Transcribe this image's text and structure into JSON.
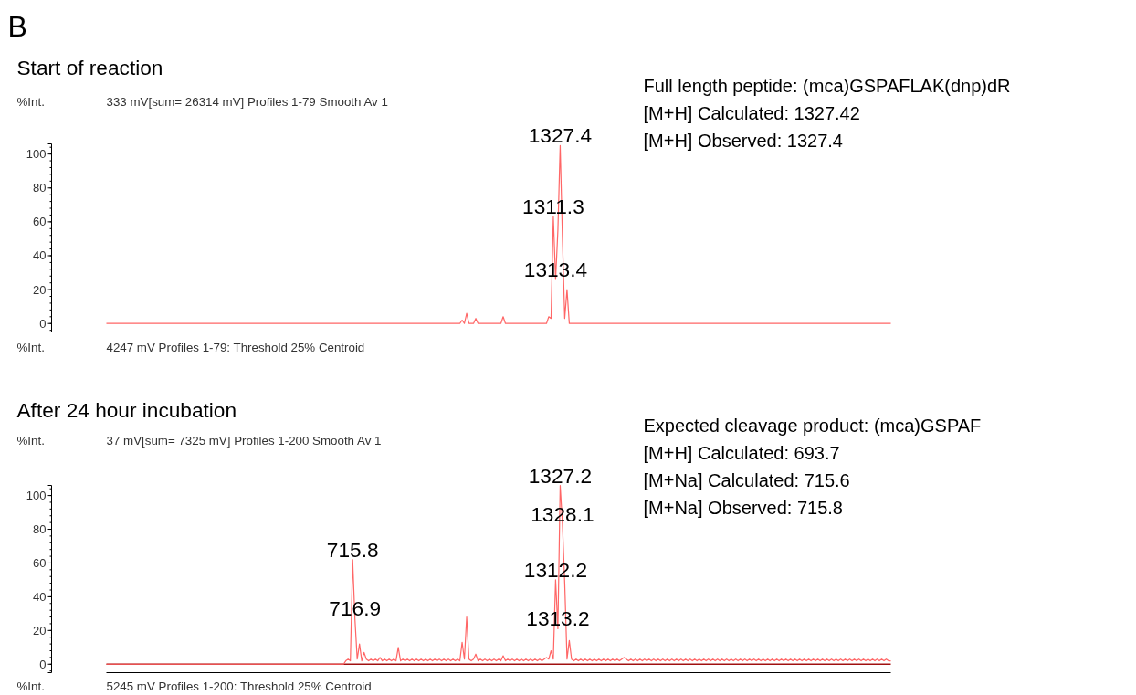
{
  "chart_data": [
    {
      "type": "line",
      "title": "Start of reaction",
      "subtitle": "333 mV[sum= 26314 mV]  Profiles 1-79 Smooth Av 1",
      "xlabel": "4247 mV  Profiles 1-79: Threshold 25% Centroid",
      "ylabel": "%Int.",
      "annotations": [
        "B",
        "Full length peptide: (mca)GSPAFLAK(dnp)dR",
        "[M+H] Calculated: 1327.42",
        "[M+H] Observed: 1327.4",
        {
          "text": "1327.4",
          "y": 105
        },
        {
          "text": "1311.3",
          "y": 63
        },
        {
          "text": "1313.4",
          "y": 26
        }
      ],
      "categories": [
        null,
        null,
        null,
        null,
        null,
        null,
        null,
        null,
        null,
        null,
        null,
        null,
        null,
        null,
        null,
        null,
        null,
        null,
        null,
        null,
        null,
        null,
        null,
        null,
        null,
        null,
        null,
        null,
        null,
        null,
        null,
        null,
        null,
        null,
        null,
        null,
        null,
        null,
        null,
        null,
        null,
        null,
        null,
        null,
        null,
        null,
        null,
        null,
        null,
        null,
        null,
        null,
        null,
        null,
        null,
        null,
        null,
        null,
        null,
        null,
        null,
        null,
        null,
        null,
        null,
        null,
        null,
        null,
        null,
        null,
        null,
        null,
        null,
        null,
        null,
        null,
        null,
        null,
        null,
        null,
        null,
        null,
        null,
        null,
        null,
        null,
        null,
        null,
        null,
        null,
        null,
        null,
        null,
        null,
        null,
        null,
        null,
        null,
        null,
        null,
        null,
        null,
        null,
        null,
        null,
        null,
        null,
        null,
        null,
        null,
        null,
        null,
        null,
        null,
        null,
        null,
        null,
        null,
        null,
        null,
        null,
        null,
        null,
        null,
        null,
        null,
        null,
        null,
        null,
        null,
        null,
        null,
        null,
        null,
        null,
        null,
        null,
        null,
        null,
        null,
        null,
        null,
        null,
        null,
        null,
        null,
        null,
        null,
        null,
        null,
        null,
        null,
        null,
        null,
        null,
        null,
        null,
        null,
        null,
        null,
        null,
        null,
        null,
        null,
        null,
        null,
        null,
        null,
        null,
        null,
        null,
        null,
        null,
        null,
        null,
        null,
        null,
        null,
        null,
        null,
        null,
        null,
        null,
        null,
        null,
        null,
        null,
        null,
        null,
        null,
        null,
        null,
        null,
        null,
        null,
        null,
        null,
        null,
        null,
        null,
        null,
        null,
        null,
        null,
        null,
        null,
        null,
        null,
        null,
        null,
        null,
        null,
        null,
        null,
        null,
        null,
        null,
        null,
        null,
        null,
        null,
        null,
        null,
        null,
        null,
        null,
        null,
        null,
        null,
        null,
        null,
        null,
        null,
        null,
        null,
        null,
        null,
        null,
        null,
        null,
        null,
        null,
        null,
        null,
        null,
        null,
        null,
        null,
        null,
        null,
        null,
        null,
        null,
        null,
        null,
        null,
        null,
        null,
        null,
        null,
        null,
        null,
        null,
        null,
        null,
        null,
        null,
        null,
        null,
        null,
        null,
        null,
        null,
        null,
        null,
        null,
        null,
        null,
        null,
        null,
        null,
        null,
        null,
        null,
        null,
        null,
        null,
        null,
        null,
        null,
        null,
        null,
        null,
        null,
        null,
        null,
        null,
        null,
        null,
        null,
        null,
        null,
        null,
        null,
        null,
        null,
        null,
        null,
        null,
        null,
        null,
        null,
        null,
        null,
        null,
        null,
        null,
        null,
        null,
        null,
        null,
        null,
        null,
        null,
        null,
        null,
        null,
        null,
        null,
        null,
        null,
        null,
        null,
        null,
        null,
        null,
        null,
        null,
        null,
        null,
        null,
        null,
        null,
        null,
        null
      ],
      "series": [
        {
          "color": "#ff6666",
          "values": [
            0,
            0,
            0,
            0,
            0,
            0,
            0,
            0,
            0,
            0,
            0,
            0,
            0,
            0,
            0,
            0,
            0,
            0,
            0,
            0,
            0,
            0,
            0,
            0,
            0,
            0,
            0,
            0,
            0,
            0,
            0,
            0,
            0,
            0,
            0,
            0,
            0,
            0,
            0,
            0,
            0,
            0,
            0,
            0,
            0,
            0,
            0,
            0,
            0,
            0,
            0,
            0,
            0,
            0,
            0,
            0,
            0,
            0,
            0,
            0,
            0,
            0,
            0,
            0,
            0,
            0,
            0,
            0,
            0,
            0,
            0,
            0,
            0,
            0,
            0,
            0,
            0,
            0,
            0,
            0,
            0,
            0,
            0,
            0,
            0,
            0,
            0,
            0,
            0,
            0,
            0,
            0,
            0,
            0,
            0,
            0,
            0,
            0,
            0,
            0,
            0,
            0,
            0,
            0,
            0,
            0,
            0,
            0,
            0,
            0,
            0,
            0,
            0,
            0,
            0,
            0,
            0,
            0,
            0,
            0,
            0,
            0,
            0,
            0,
            0,
            0,
            0,
            0,
            0,
            0,
            0,
            0,
            0,
            0,
            0,
            0,
            0,
            0,
            0,
            0,
            0,
            0,
            0,
            0,
            0,
            0,
            0,
            0,
            0,
            0,
            0,
            0,
            0,
            0,
            0,
            0,
            2,
            0,
            6,
            0,
            0,
            0,
            3,
            0,
            0,
            0,
            0,
            0,
            0,
            0,
            0,
            0,
            0,
            0,
            4,
            0,
            0,
            0,
            0,
            0,
            0,
            0,
            0,
            0,
            0,
            0,
            0,
            0,
            0,
            0,
            0,
            0,
            0,
            0,
            4,
            3,
            63,
            26,
            55,
            105,
            50,
            3,
            20,
            0,
            0,
            0,
            0,
            0,
            0,
            0,
            0,
            0,
            0,
            0,
            0,
            0,
            0,
            0,
            0,
            0,
            0,
            0,
            0,
            0,
            0,
            0,
            0,
            0,
            0,
            0,
            0,
            0,
            0,
            0,
            0,
            0,
            0,
            0,
            0,
            0,
            0,
            0,
            0,
            0,
            0,
            0,
            0,
            0,
            0,
            0,
            0,
            0,
            0,
            0,
            0,
            0,
            0,
            0,
            0,
            0,
            0,
            0,
            0,
            0,
            0,
            0,
            0,
            0,
            0,
            0,
            0,
            0,
            0,
            0,
            0,
            0,
            0,
            0,
            0,
            0,
            0,
            0,
            0,
            0,
            0,
            0,
            0,
            0,
            0,
            0,
            0,
            0,
            0,
            0,
            0,
            0,
            0,
            0,
            0,
            0,
            0,
            0,
            0,
            0,
            0,
            0,
            0,
            0,
            0,
            0,
            0,
            0,
            0,
            0,
            0,
            0,
            0,
            0,
            0,
            0,
            0,
            0,
            0,
            0,
            0,
            0,
            0,
            0,
            0,
            0,
            0,
            0,
            0,
            0,
            0,
            0,
            0,
            0,
            0,
            0,
            0,
            0,
            0,
            0,
            0
          ]
        }
      ],
      "ylim": [
        -5,
        106
      ],
      "yticks": [
        0,
        20,
        40,
        60,
        80,
        100
      ],
      "tick_labels": "y"
    },
    {
      "type": "line",
      "title": "After 24 hour incubation",
      "subtitle": "37 mV[sum= 7325 mV]  Profiles 1-200 Smooth Av 1",
      "xlabel": "5245 mV  Profiles 1-200: Threshold 25% Centroid",
      "ylabel": "%Int.",
      "annotations": [
        "Expected cleavage product: (mca)GSPAF",
        "[M+H] Calculated: 693.7",
        "[M+Na] Calculated: 715.6",
        "[M+Na] Observed: 715.8",
        {
          "text": "715.8",
          "y": 62
        },
        {
          "text": "716.9",
          "y": 27
        },
        {
          "text": "1327.2",
          "y": 106
        },
        {
          "text": "1328.1",
          "y": 83
        },
        {
          "text": "1312.2",
          "y": 50
        },
        {
          "text": "1313.2",
          "y": 21
        }
      ],
      "categories": [
        null,
        null,
        null,
        null,
        null,
        null,
        null,
        null,
        null,
        null,
        null,
        null,
        null,
        null,
        null,
        null,
        null,
        null,
        null,
        null,
        null,
        null,
        null,
        null,
        null,
        null,
        null,
        null,
        null,
        null,
        null,
        null,
        null,
        null,
        null,
        null,
        null,
        null,
        null,
        null,
        null,
        null,
        null,
        null,
        null,
        null,
        null,
        null,
        null,
        null,
        null,
        null,
        null,
        null,
        null,
        null,
        null,
        null,
        null,
        null,
        null,
        null,
        null,
        null,
        null,
        null,
        null,
        null,
        null,
        null,
        null,
        null,
        null,
        null,
        null,
        null,
        null,
        null,
        null,
        null,
        null,
        null,
        null,
        null,
        null,
        null,
        null,
        null,
        null,
        null,
        null,
        null,
        null,
        null,
        null,
        null,
        null,
        null,
        null,
        null,
        null,
        null,
        null,
        null,
        null,
        null,
        null,
        null,
        null,
        null,
        null,
        null,
        null,
        null,
        null,
        null,
        null,
        null,
        null,
        null,
        null,
        null,
        null,
        null,
        null,
        null,
        null,
        null,
        null,
        null,
        null,
        null,
        null,
        null,
        null,
        null,
        null,
        null,
        null,
        null,
        null,
        null,
        null,
        null,
        null,
        null,
        null,
        null,
        null,
        null,
        null,
        null,
        null,
        null,
        null,
        null,
        null,
        null,
        null,
        null,
        null,
        null,
        null,
        null,
        null,
        null,
        null,
        null,
        null,
        null,
        null,
        null,
        null,
        null,
        null,
        null,
        null,
        null,
        null,
        null,
        null,
        null,
        null,
        null,
        null,
        null,
        null,
        null,
        null,
        null,
        null,
        null,
        null,
        null,
        null,
        null,
        null,
        null,
        null,
        null,
        null,
        null,
        null,
        null,
        null,
        null,
        null,
        null,
        null,
        null,
        null,
        null,
        null,
        null,
        null,
        null,
        null,
        null,
        null,
        null,
        null,
        null,
        null,
        null,
        null,
        null,
        null,
        null,
        null,
        null,
        null,
        null,
        null,
        null,
        null,
        null,
        null,
        null,
        null,
        null,
        null,
        null,
        null,
        null,
        null,
        null,
        null,
        null,
        null,
        null,
        null,
        null,
        null,
        null,
        null,
        null,
        null,
        null,
        null,
        null,
        null,
        null,
        null,
        null,
        null,
        null,
        null,
        null,
        null,
        null,
        null,
        null,
        null,
        null,
        null,
        null,
        null,
        null,
        null,
        null,
        null,
        null,
        null,
        null,
        null,
        null,
        null,
        null,
        null,
        null,
        null,
        null,
        null,
        null,
        null,
        null,
        null,
        null,
        null,
        null,
        null,
        null,
        null,
        null,
        null,
        null,
        null,
        null,
        null,
        null,
        null,
        null,
        null,
        null,
        null,
        null,
        null,
        null,
        null,
        null,
        null,
        null,
        null,
        null,
        null,
        null,
        null,
        null,
        null,
        null,
        null,
        null,
        null,
        null,
        null,
        null,
        null,
        null,
        null,
        null,
        null,
        null,
        null,
        null,
        null
      ],
      "series": [
        {
          "color": "#ff6666",
          "values": [
            0,
            0,
            0,
            0,
            0,
            0,
            0,
            0,
            0,
            0,
            0,
            0,
            0,
            0,
            0,
            0,
            0,
            0,
            0,
            0,
            0,
            0,
            0,
            0,
            0,
            0,
            0,
            0,
            0,
            0,
            0,
            0,
            0,
            0,
            0,
            0,
            0,
            0,
            0,
            0,
            0,
            0,
            0,
            0,
            0,
            0,
            0,
            0,
            0,
            0,
            0,
            0,
            0,
            0,
            0,
            0,
            0,
            0,
            0,
            0,
            0,
            0,
            0,
            0,
            0,
            0,
            0,
            0,
            0,
            0,
            0,
            0,
            0,
            0,
            0,
            0,
            0,
            0,
            0,
            0,
            0,
            0,
            0,
            0,
            0,
            0,
            0,
            0,
            0,
            0,
            0,
            0,
            0,
            0,
            0,
            0,
            0,
            0,
            0,
            0,
            0,
            0,
            0,
            0,
            0,
            2,
            3,
            2,
            62,
            27,
            3,
            12,
            2,
            7,
            3,
            2,
            3,
            2,
            3,
            2,
            4,
            2,
            3,
            2,
            3,
            2,
            3,
            2,
            10,
            2,
            3,
            2,
            3,
            2,
            3,
            2,
            3,
            2,
            3,
            2,
            3,
            2,
            3,
            2,
            3,
            2,
            3,
            2,
            3,
            2,
            3,
            2,
            3,
            2,
            3,
            2,
            13,
            3,
            28,
            3,
            2,
            3,
            6,
            2,
            3,
            2,
            3,
            2,
            3,
            2,
            3,
            2,
            3,
            2,
            5,
            2,
            3,
            2,
            3,
            2,
            3,
            2,
            3,
            2,
            3,
            2,
            3,
            2,
            3,
            2,
            3,
            2,
            3,
            4,
            3,
            8,
            3,
            50,
            21,
            106,
            83,
            48,
            3,
            14,
            3,
            2,
            3,
            2,
            3,
            2,
            3,
            2,
            3,
            2,
            3,
            2,
            3,
            2,
            3,
            2,
            3,
            2,
            3,
            2,
            3,
            2,
            3,
            4,
            3,
            2,
            3,
            2,
            3,
            2,
            3,
            2,
            3,
            2,
            3,
            2,
            3,
            2,
            3,
            2,
            3,
            2,
            3,
            2,
            3,
            2,
            3,
            2,
            3,
            2,
            3,
            2,
            3,
            2,
            3,
            2,
            3,
            2,
            3,
            2,
            3,
            2,
            3,
            2,
            3,
            2,
            3,
            2,
            3,
            2,
            3,
            2,
            3,
            2,
            3,
            2,
            3,
            2,
            3,
            2,
            3,
            2,
            3,
            2,
            3,
            2,
            3,
            2,
            3,
            2,
            3,
            2,
            3,
            2,
            3,
            2,
            3,
            2,
            3,
            2,
            3,
            2,
            3,
            2,
            3,
            2,
            3,
            2,
            3,
            2,
            3,
            2,
            3,
            2,
            3,
            2,
            3,
            2,
            3,
            2,
            3,
            2,
            3,
            2,
            3,
            2,
            3,
            2,
            3,
            2,
            3,
            2,
            3,
            2,
            3,
            2,
            3,
            2,
            3,
            2,
            2
          ]
        }
      ],
      "ylim": [
        -5,
        106
      ],
      "yticks": [
        0,
        20,
        40,
        60,
        80,
        100
      ],
      "tick_labels": "y",
      "ref_lines": [
        {
          "axis": "y",
          "value": 0,
          "color": "#a01010"
        }
      ]
    }
  ]
}
